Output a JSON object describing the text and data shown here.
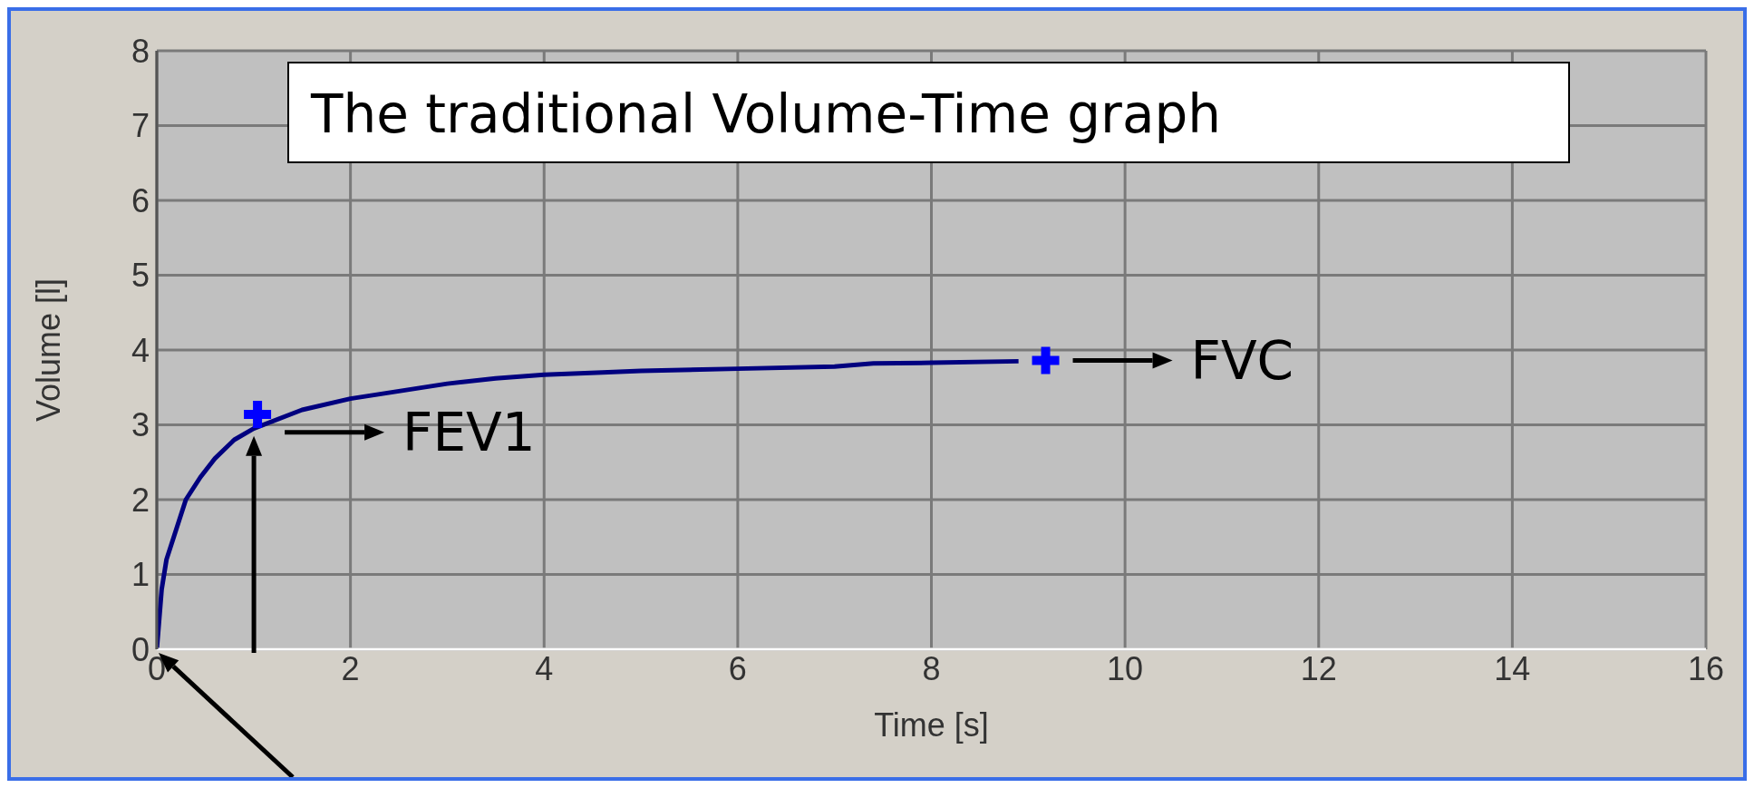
{
  "chart_data": {
    "type": "line",
    "title": "The traditional Volume-Time graph",
    "xlabel": "Time [s]",
    "ylabel": "Volume [l]",
    "xlim": [
      0,
      16
    ],
    "xticks": [
      0,
      2,
      4,
      6,
      8,
      10,
      12,
      14,
      16
    ],
    "ylim": [
      0,
      8
    ],
    "yticks": [
      0,
      1,
      2,
      3,
      4,
      5,
      6,
      7,
      8
    ],
    "grid": true,
    "series": [
      {
        "color": "#00007f",
        "marker": "none",
        "x": [
          0,
          0.05,
          0.1,
          0.2,
          0.3,
          0.45,
          0.6,
          0.8,
          1.0,
          1.5,
          2,
          2.5,
          3,
          3.5,
          4,
          4.6,
          5,
          6,
          7,
          7.4,
          8,
          8.9
        ],
        "values": [
          0,
          0.8,
          1.2,
          1.6,
          2.0,
          2.3,
          2.55,
          2.8,
          2.95,
          3.2,
          3.35,
          3.45,
          3.55,
          3.62,
          3.67,
          3.7,
          3.72,
          3.75,
          3.78,
          3.82,
          3.83,
          3.85
        ]
      },
      {
        "type": "scatter",
        "color": "#0000ff",
        "marker": "cross",
        "x": [
          1.04,
          9.18
        ],
        "values": [
          3.14,
          3.86
        ]
      }
    ],
    "annotations": [
      {
        "text": "FEV1",
        "x": 1.04,
        "y": 2.9
      },
      {
        "text": "FVC",
        "x": 9.18,
        "y": 3.86
      }
    ]
  }
}
